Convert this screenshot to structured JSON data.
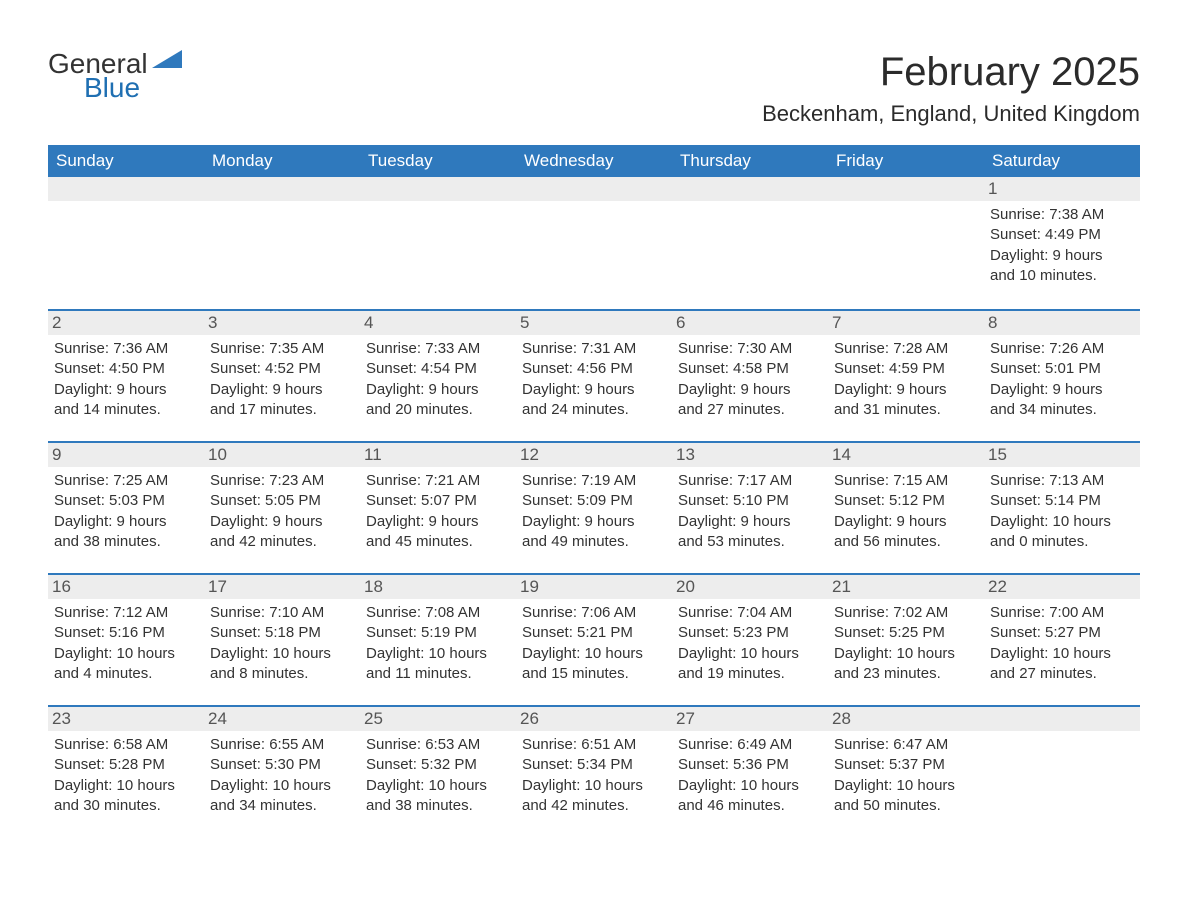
{
  "logo": {
    "general": "General",
    "blue": "Blue",
    "tri_color": "#2f79bd"
  },
  "title": "February 2025",
  "location": "Beckenham, England, United Kingdom",
  "colors": {
    "header_bg": "#2f79bd",
    "header_text": "#ffffff",
    "daynum_bg": "#ededed",
    "text": "#333333",
    "rule": "#2f79bd"
  },
  "fonts": {
    "title_size": 40,
    "location_size": 22,
    "header_size": 17,
    "body_size": 15
  },
  "day_headers": [
    "Sunday",
    "Monday",
    "Tuesday",
    "Wednesday",
    "Thursday",
    "Friday",
    "Saturday"
  ],
  "weeks": [
    [
      {
        "day": null
      },
      {
        "day": null
      },
      {
        "day": null
      },
      {
        "day": null
      },
      {
        "day": null
      },
      {
        "day": null
      },
      {
        "day": 1,
        "sunrise": "Sunrise: 7:38 AM",
        "sunset": "Sunset: 4:49 PM",
        "dl1": "Daylight: 9 hours",
        "dl2": "and 10 minutes."
      }
    ],
    [
      {
        "day": 2,
        "sunrise": "Sunrise: 7:36 AM",
        "sunset": "Sunset: 4:50 PM",
        "dl1": "Daylight: 9 hours",
        "dl2": "and 14 minutes."
      },
      {
        "day": 3,
        "sunrise": "Sunrise: 7:35 AM",
        "sunset": "Sunset: 4:52 PM",
        "dl1": "Daylight: 9 hours",
        "dl2": "and 17 minutes."
      },
      {
        "day": 4,
        "sunrise": "Sunrise: 7:33 AM",
        "sunset": "Sunset: 4:54 PM",
        "dl1": "Daylight: 9 hours",
        "dl2": "and 20 minutes."
      },
      {
        "day": 5,
        "sunrise": "Sunrise: 7:31 AM",
        "sunset": "Sunset: 4:56 PM",
        "dl1": "Daylight: 9 hours",
        "dl2": "and 24 minutes."
      },
      {
        "day": 6,
        "sunrise": "Sunrise: 7:30 AM",
        "sunset": "Sunset: 4:58 PM",
        "dl1": "Daylight: 9 hours",
        "dl2": "and 27 minutes."
      },
      {
        "day": 7,
        "sunrise": "Sunrise: 7:28 AM",
        "sunset": "Sunset: 4:59 PM",
        "dl1": "Daylight: 9 hours",
        "dl2": "and 31 minutes."
      },
      {
        "day": 8,
        "sunrise": "Sunrise: 7:26 AM",
        "sunset": "Sunset: 5:01 PM",
        "dl1": "Daylight: 9 hours",
        "dl2": "and 34 minutes."
      }
    ],
    [
      {
        "day": 9,
        "sunrise": "Sunrise: 7:25 AM",
        "sunset": "Sunset: 5:03 PM",
        "dl1": "Daylight: 9 hours",
        "dl2": "and 38 minutes."
      },
      {
        "day": 10,
        "sunrise": "Sunrise: 7:23 AM",
        "sunset": "Sunset: 5:05 PM",
        "dl1": "Daylight: 9 hours",
        "dl2": "and 42 minutes."
      },
      {
        "day": 11,
        "sunrise": "Sunrise: 7:21 AM",
        "sunset": "Sunset: 5:07 PM",
        "dl1": "Daylight: 9 hours",
        "dl2": "and 45 minutes."
      },
      {
        "day": 12,
        "sunrise": "Sunrise: 7:19 AM",
        "sunset": "Sunset: 5:09 PM",
        "dl1": "Daylight: 9 hours",
        "dl2": "and 49 minutes."
      },
      {
        "day": 13,
        "sunrise": "Sunrise: 7:17 AM",
        "sunset": "Sunset: 5:10 PM",
        "dl1": "Daylight: 9 hours",
        "dl2": "and 53 minutes."
      },
      {
        "day": 14,
        "sunrise": "Sunrise: 7:15 AM",
        "sunset": "Sunset: 5:12 PM",
        "dl1": "Daylight: 9 hours",
        "dl2": "and 56 minutes."
      },
      {
        "day": 15,
        "sunrise": "Sunrise: 7:13 AM",
        "sunset": "Sunset: 5:14 PM",
        "dl1": "Daylight: 10 hours",
        "dl2": "and 0 minutes."
      }
    ],
    [
      {
        "day": 16,
        "sunrise": "Sunrise: 7:12 AM",
        "sunset": "Sunset: 5:16 PM",
        "dl1": "Daylight: 10 hours",
        "dl2": "and 4 minutes."
      },
      {
        "day": 17,
        "sunrise": "Sunrise: 7:10 AM",
        "sunset": "Sunset: 5:18 PM",
        "dl1": "Daylight: 10 hours",
        "dl2": "and 8 minutes."
      },
      {
        "day": 18,
        "sunrise": "Sunrise: 7:08 AM",
        "sunset": "Sunset: 5:19 PM",
        "dl1": "Daylight: 10 hours",
        "dl2": "and 11 minutes."
      },
      {
        "day": 19,
        "sunrise": "Sunrise: 7:06 AM",
        "sunset": "Sunset: 5:21 PM",
        "dl1": "Daylight: 10 hours",
        "dl2": "and 15 minutes."
      },
      {
        "day": 20,
        "sunrise": "Sunrise: 7:04 AM",
        "sunset": "Sunset: 5:23 PM",
        "dl1": "Daylight: 10 hours",
        "dl2": "and 19 minutes."
      },
      {
        "day": 21,
        "sunrise": "Sunrise: 7:02 AM",
        "sunset": "Sunset: 5:25 PM",
        "dl1": "Daylight: 10 hours",
        "dl2": "and 23 minutes."
      },
      {
        "day": 22,
        "sunrise": "Sunrise: 7:00 AM",
        "sunset": "Sunset: 5:27 PM",
        "dl1": "Daylight: 10 hours",
        "dl2": "and 27 minutes."
      }
    ],
    [
      {
        "day": 23,
        "sunrise": "Sunrise: 6:58 AM",
        "sunset": "Sunset: 5:28 PM",
        "dl1": "Daylight: 10 hours",
        "dl2": "and 30 minutes."
      },
      {
        "day": 24,
        "sunrise": "Sunrise: 6:55 AM",
        "sunset": "Sunset: 5:30 PM",
        "dl1": "Daylight: 10 hours",
        "dl2": "and 34 minutes."
      },
      {
        "day": 25,
        "sunrise": "Sunrise: 6:53 AM",
        "sunset": "Sunset: 5:32 PM",
        "dl1": "Daylight: 10 hours",
        "dl2": "and 38 minutes."
      },
      {
        "day": 26,
        "sunrise": "Sunrise: 6:51 AM",
        "sunset": "Sunset: 5:34 PM",
        "dl1": "Daylight: 10 hours",
        "dl2": "and 42 minutes."
      },
      {
        "day": 27,
        "sunrise": "Sunrise: 6:49 AM",
        "sunset": "Sunset: 5:36 PM",
        "dl1": "Daylight: 10 hours",
        "dl2": "and 46 minutes."
      },
      {
        "day": 28,
        "sunrise": "Sunrise: 6:47 AM",
        "sunset": "Sunset: 5:37 PM",
        "dl1": "Daylight: 10 hours",
        "dl2": "and 50 minutes."
      },
      {
        "day": null
      }
    ]
  ]
}
